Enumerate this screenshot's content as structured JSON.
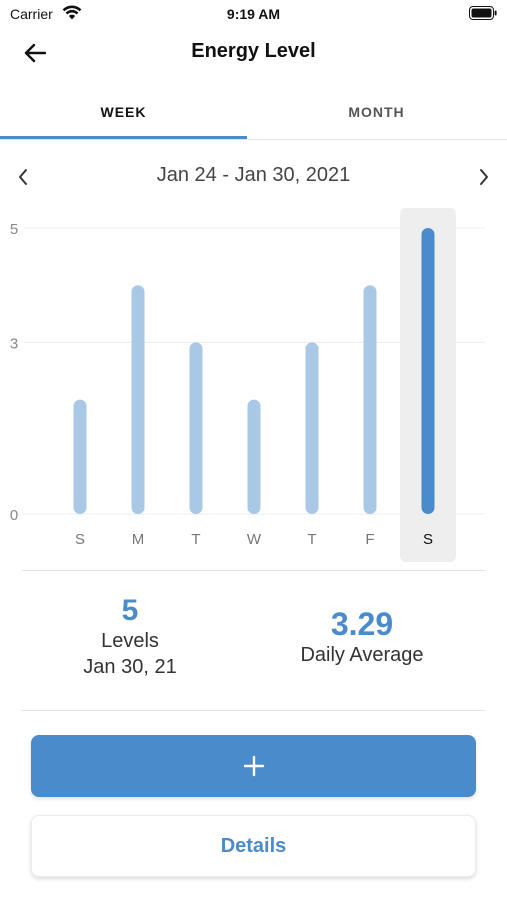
{
  "status_bar": {
    "carrier": "Carrier",
    "time": "9:19 AM",
    "icons": [
      "wifi-icon",
      "battery-icon"
    ]
  },
  "nav": {
    "title": "Energy Level",
    "back_icon": "arrow-left-icon"
  },
  "tabs": [
    {
      "label": "WEEK",
      "selected": true
    },
    {
      "label": "MONTH",
      "selected": false
    }
  ],
  "date_range": {
    "label": "Jan 24 - Jan 30, 2021",
    "prev_icon": "chevron-left-icon",
    "next_icon": "chevron-right-icon"
  },
  "chart_data": {
    "type": "bar",
    "categories": [
      "S",
      "M",
      "T",
      "W",
      "T",
      "F",
      "S"
    ],
    "values": [
      2,
      4,
      3,
      2,
      3,
      4,
      5
    ],
    "y_ticks": [
      "0",
      "3",
      "5"
    ],
    "ylim": [
      0,
      5
    ],
    "selected_index": 6,
    "grid": true,
    "colors": {
      "bar": "#a9c8e6",
      "bar_selected": "#4a8bcb",
      "selected_bg": "#eeeeee"
    }
  },
  "stats": {
    "levels": {
      "value": "5",
      "label": "Levels",
      "date": "Jan 30, 21"
    },
    "average": {
      "value": "3.29",
      "label": "Daily Average"
    }
  },
  "actions": {
    "add_icon": "plus-icon",
    "details_label": "Details"
  },
  "colors": {
    "accent": "#4a8bcb"
  }
}
